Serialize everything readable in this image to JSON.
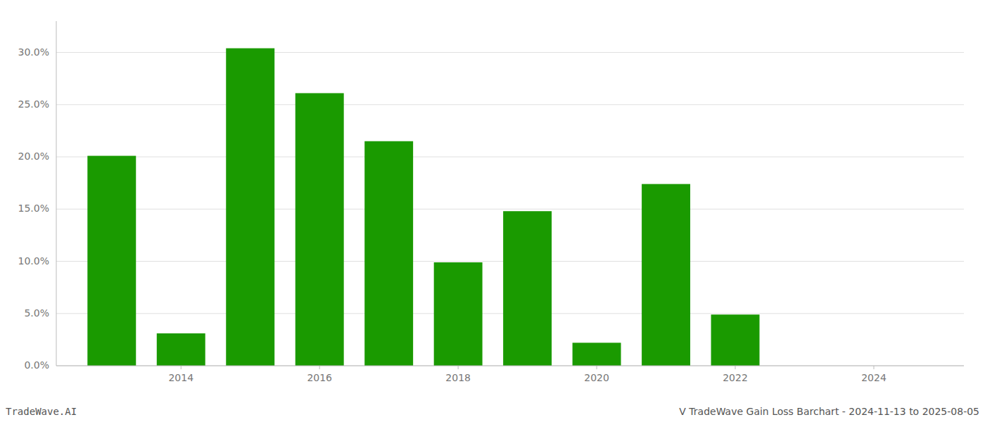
{
  "chart_data": {
    "type": "bar",
    "title": "V TradeWave Gain Loss Barchart - 2024-11-13 to 2025-08-05",
    "annotations": [
      "TradeWave.AI"
    ],
    "x": [
      2013,
      2014,
      2015,
      2016,
      2017,
      2018,
      2019,
      2020,
      2021,
      2022,
      2023
    ],
    "values": [
      0.201,
      0.031,
      0.304,
      0.261,
      0.215,
      0.099,
      0.148,
      0.022,
      0.174,
      0.049,
      0.0
    ],
    "color": "#1a9a00",
    "xlim": [
      2012.2,
      2025.3
    ],
    "xticks": [
      2014,
      2016,
      2018,
      2020,
      2022,
      2024
    ],
    "ylim": [
      0.0,
      0.33
    ],
    "yticks": [
      {
        "value": 0.0,
        "label": "0.0%"
      },
      {
        "value": 0.05,
        "label": "5.0%"
      },
      {
        "value": 0.1,
        "label": "10.0%"
      },
      {
        "value": 0.15,
        "label": "15.0%"
      },
      {
        "value": 0.2,
        "label": "20.0%"
      },
      {
        "value": 0.25,
        "label": "25.0%"
      },
      {
        "value": 0.3,
        "label": "30.0%"
      }
    ],
    "grid": true
  }
}
